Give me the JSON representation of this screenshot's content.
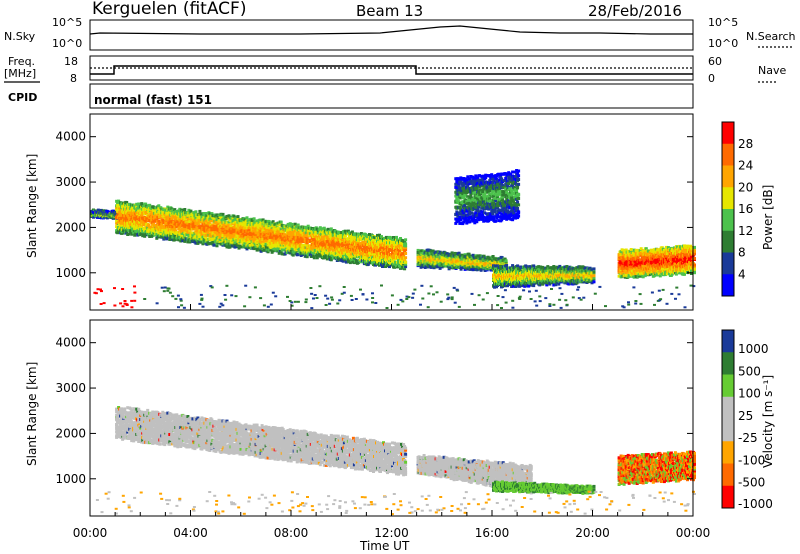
{
  "header": {
    "station": "Kerguelen (fitACF)",
    "beam": "Beam 13",
    "date": "28/Feb/2016"
  },
  "small_panels": {
    "nsky_label": "N.Sky",
    "nsky_ticks": [
      "10^5",
      "10^0"
    ],
    "nsearch_label": "N.Search",
    "nsearch_ticks": [
      "10^5",
      "10^0"
    ],
    "freq_label_1": "Freq.",
    "freq_label_2": "[MHz]",
    "freq_ticks": [
      "18",
      "8"
    ],
    "nave_label": "Nave",
    "nave_ticks": [
      "60",
      "0"
    ],
    "cpid_label": "CPID",
    "cpid_value": "normal (fast) 151"
  },
  "chart_data": [
    {
      "type": "heatmap",
      "name": "power",
      "ylabel": "Slant Range [km]",
      "ylim": [
        180,
        4500
      ],
      "y_ticks": [
        1000,
        2000,
        3000,
        4000
      ],
      "colorbar_label": "Power [dB]",
      "colorbar_ticks": [
        "28",
        "24",
        "20",
        "16",
        "12",
        "8",
        "4"
      ],
      "colors": [
        "#ff0000",
        "#ff6a00",
        "#ffa500",
        "#e6e600",
        "#4cc24c",
        "#2e7d32",
        "#1a3a99",
        "#0000ff"
      ],
      "features": [
        {
          "start_h": 0.0,
          "end_h": 1.3,
          "range_start": [
            2350,
            2250
          ],
          "range_end": [
            2300,
            2200
          ],
          "level": 3
        },
        {
          "start_h": 1.0,
          "end_h": 12.5,
          "range_start": [
            2600,
            1900
          ],
          "range_end": [
            1750,
            1100
          ],
          "level": 1
        },
        {
          "start_h": 13.0,
          "end_h": 16.5,
          "range_start": [
            1500,
            1150
          ],
          "range_end": [
            1300,
            1050
          ],
          "level": 2
        },
        {
          "start_h": 16.0,
          "end_h": 20.0,
          "range_start": [
            1150,
            700
          ],
          "range_end": [
            1100,
            800
          ],
          "level": 2
        },
        {
          "start_h": 21.0,
          "end_h": 24.0,
          "range_start": [
            1500,
            900
          ],
          "range_end": [
            1600,
            1000
          ],
          "level": 0
        },
        {
          "start_h": 14.5,
          "end_h": 17.0,
          "range_start": [
            3100,
            2100
          ],
          "range_end": [
            3300,
            2200
          ],
          "level": 4
        }
      ]
    },
    {
      "type": "heatmap",
      "name": "velocity",
      "ylabel": "Slant Range [km]",
      "ylim": [
        180,
        4500
      ],
      "y_ticks": [
        1000,
        2000,
        3000,
        4000
      ],
      "colorbar_label": "Velocity [m s⁻¹]",
      "colorbar_ticks": [
        "1000",
        "500",
        "100",
        "25",
        "-25",
        "-100",
        "-500",
        "-1000"
      ],
      "colors": [
        "#1a3a99",
        "#2e7d32",
        "#66cc33",
        "#c0c0c0",
        "#c0c0c0",
        "#ffa500",
        "#ff6a00",
        "#ff0000"
      ],
      "features": [
        {
          "start_h": 1.0,
          "end_h": 12.5,
          "range_start": [
            2600,
            1900
          ],
          "range_end": [
            1750,
            1100
          ],
          "kind": "ground"
        },
        {
          "start_h": 13.0,
          "end_h": 17.5,
          "range_start": [
            1500,
            1150
          ],
          "range_end": [
            1300,
            700
          ],
          "kind": "ground"
        },
        {
          "start_h": 16.0,
          "end_h": 20.0,
          "range_start": [
            900,
            750
          ],
          "range_end": [
            800,
            700
          ],
          "kind": "positive"
        },
        {
          "start_h": 21.0,
          "end_h": 24.0,
          "range_start": [
            1500,
            900
          ],
          "range_end": [
            1600,
            1000
          ],
          "kind": "negative"
        }
      ]
    }
  ],
  "x_axis": {
    "ticks": [
      "00:00",
      "04:00",
      "08:00",
      "12:00",
      "16:00",
      "20:00",
      "00:00"
    ],
    "xlabel": "Time UT"
  }
}
